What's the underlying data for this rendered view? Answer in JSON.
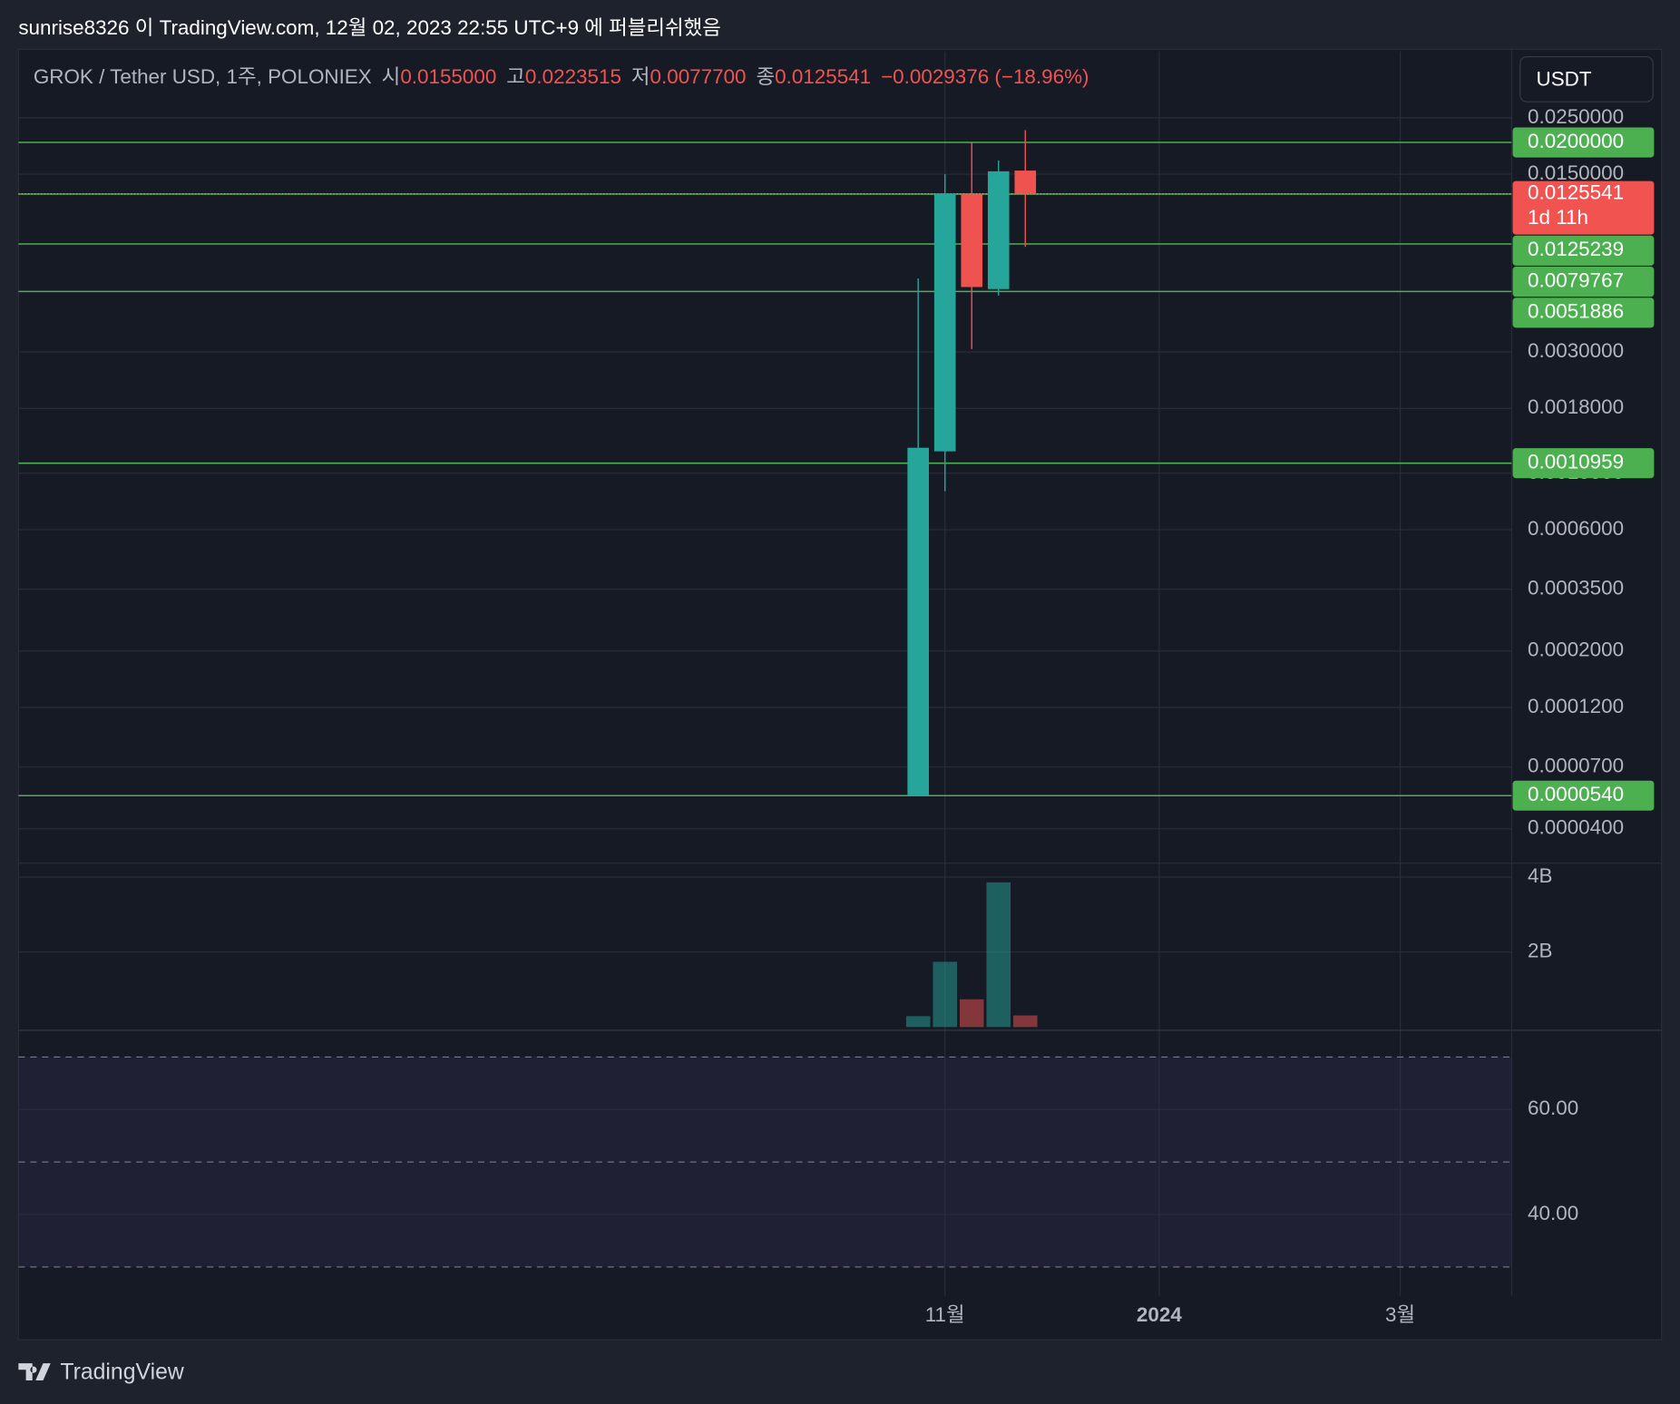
{
  "header": {
    "publisher": "sunrise8326 이 TradingView.com, 12월 02, 2023 22:55 UTC+9 에 퍼블리쉬했음"
  },
  "legend": {
    "symbol": "GROK / Tether USD, 1주, POLONIEX",
    "open_label": "시",
    "open": "0.0155000",
    "high_label": "고",
    "high": "0.0223515",
    "low_label": "저",
    "low": "0.0077700",
    "close_label": "종",
    "close": "0.0125541",
    "change": "−0.0029376 (−18.96%)"
  },
  "currency_button": "USDT",
  "footer": {
    "logo": "TradingView"
  },
  "chart_data": {
    "type": "candlestick",
    "log_scale": true,
    "grid": true,
    "x": [
      0,
      1,
      2,
      3,
      4
    ],
    "xlim": [
      -33.6,
      22.16
    ],
    "xticks": [
      {
        "value": 1,
        "label": "11월"
      },
      {
        "value": 9,
        "label": "2024"
      },
      {
        "value": 18,
        "label": "3월"
      }
    ],
    "open": [
      5.4e-05,
      0.00122,
      0.0125,
      0.0053,
      0.0155
    ],
    "high": [
      0.00584,
      0.015,
      0.02,
      0.017,
      0.0223515
    ],
    "low": [
      5.4e-05,
      0.00085,
      0.00308,
      0.005,
      0.00777
    ],
    "close": [
      0.00126,
      0.01256,
      0.0054,
      0.0154,
      0.0125541
    ],
    "up_color": "#26a69a",
    "down_color": "#ef5350",
    "ylim": [
      2.93e-05,
      0.0456
    ],
    "yticks": [
      {
        "value": 0.025,
        "label": "0.0250000"
      },
      {
        "value": 0.015,
        "label": "0.0150000"
      },
      {
        "value": 0.003,
        "label": "0.0030000"
      },
      {
        "value": 0.0018,
        "label": "0.0018000"
      },
      {
        "value": 0.001,
        "label": "0.0010000"
      },
      {
        "value": 0.0006,
        "label": "0.0006000"
      },
      {
        "value": 0.00035,
        "label": "0.0003500"
      },
      {
        "value": 0.0002,
        "label": "0.0002000"
      },
      {
        "value": 0.00012,
        "label": "0.0001200"
      },
      {
        "value": 7e-05,
        "label": "0.0000700"
      },
      {
        "value": 4e-05,
        "label": "0.0000400"
      }
    ],
    "levels": {
      "color": "#4caf50",
      "values": [
        0.02,
        0.0125239,
        0.0079767,
        0.0051886,
        0.0010959,
        5.4e-05
      ],
      "value_labels": [
        "0.0200000",
        "0.0125239",
        "0.0079767",
        "0.0051886",
        "0.0010959",
        "0.0000540"
      ]
    },
    "last_price": {
      "value": 0.0125541,
      "countdown": "1d 11h",
      "color": "#f05350"
    },
    "volume": {
      "values": [
        290000000,
        1740000000,
        740000000,
        3860000000,
        310000000
      ],
      "ylim": [
        0,
        4200000000
      ],
      "yticks": [
        {
          "value": 4000000000,
          "label": "4B"
        },
        {
          "value": 2000000000,
          "label": "2B"
        }
      ]
    },
    "rsi": {
      "ylim": [
        24.5,
        75.1
      ],
      "yticks": [
        {
          "value": 60,
          "label": "60.00"
        },
        {
          "value": 40,
          "label": "40.00"
        }
      ],
      "band_levels": [
        70,
        50,
        30
      ]
    }
  }
}
